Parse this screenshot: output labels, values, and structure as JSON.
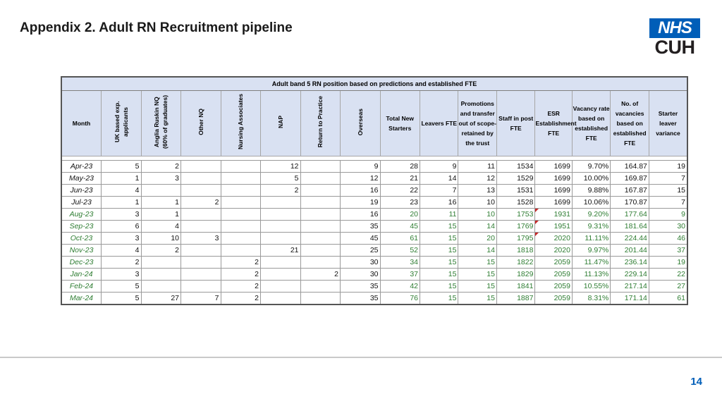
{
  "title": "Appendix 2. Adult RN Recruitment pipeline",
  "logo": {
    "nhs": "NHS",
    "org": "CUH"
  },
  "page_number": "14",
  "table": {
    "banner": "Adult band 5 RN position based on predictions and established FTE",
    "headers": [
      "Month",
      "UK based exp. applicants",
      "Anglia Ruskin NQ (60% of graduates)",
      "Other NQ",
      "Nursing Associates",
      "NAP",
      "Return to Practice",
      "Overseas",
      "Total New Starters",
      "Leavers FTE",
      "Promotions and transfer out of scope- retained by the trust",
      "Staff in post FTE",
      "ESR Establishment FTE",
      "Vacancy rate based on established FTE",
      "No. of vacancies based on established FTE",
      "Starter leaver variance"
    ],
    "rows": [
      [
        "Apr-23",
        "5",
        "2",
        "",
        "",
        "12",
        "",
        "9",
        "28",
        "9",
        "11",
        "1534",
        "1699",
        "9.70%",
        "164.87",
        "19"
      ],
      [
        "May-23",
        "1",
        "3",
        "",
        "",
        "5",
        "",
        "12",
        "21",
        "14",
        "12",
        "1529",
        "1699",
        "10.00%",
        "169.87",
        "7"
      ],
      [
        "Jun-23",
        "4",
        "",
        "",
        "",
        "2",
        "",
        "16",
        "22",
        "7",
        "13",
        "1531",
        "1699",
        "9.88%",
        "167.87",
        "15"
      ],
      [
        "Jul-23",
        "1",
        "1",
        "2",
        "",
        "",
        "",
        "19",
        "23",
        "16",
        "10",
        "1528",
        "1699",
        "10.06%",
        "170.87",
        "7"
      ],
      [
        "Aug-23",
        "3",
        "1",
        "",
        "",
        "",
        "",
        "16",
        "20",
        "11",
        "10",
        "1753",
        "1931",
        "9.20%",
        "177.64",
        "9"
      ],
      [
        "Sep-23",
        "6",
        "4",
        "",
        "",
        "",
        "",
        "35",
        "45",
        "15",
        "14",
        "1769",
        "1951",
        "9.31%",
        "181.64",
        "30"
      ],
      [
        "Oct-23",
        "3",
        "10",
        "3",
        "",
        "",
        "",
        "45",
        "61",
        "15",
        "20",
        "1795",
        "2020",
        "11.11%",
        "224.44",
        "46"
      ],
      [
        "Nov-23",
        "4",
        "2",
        "",
        "",
        "21",
        "",
        "25",
        "52",
        "15",
        "14",
        "1818",
        "2020",
        "9.97%",
        "201.44",
        "37"
      ],
      [
        "Dec-23",
        "2",
        "",
        "",
        "2",
        "",
        "",
        "30",
        "34",
        "15",
        "15",
        "1822",
        "2059",
        "11.47%",
        "236.14",
        "19"
      ],
      [
        "Jan-24",
        "3",
        "",
        "",
        "2",
        "",
        "2",
        "30",
        "37",
        "15",
        "15",
        "1829",
        "2059",
        "11.13%",
        "229.14",
        "22"
      ],
      [
        "Feb-24",
        "5",
        "",
        "",
        "2",
        "",
        "",
        "35",
        "42",
        "15",
        "15",
        "1841",
        "2059",
        "10.55%",
        "217.14",
        "27"
      ],
      [
        "Mar-24",
        "5",
        "27",
        "7",
        "2",
        "",
        "",
        "35",
        "76",
        "15",
        "15",
        "1887",
        "2059",
        "8.31%",
        "171.14",
        "61"
      ]
    ]
  },
  "colors": {
    "header_fill": "#d9e1f2",
    "forecast_text": "#2e7d32",
    "nhs_blue": "#005eb8",
    "comment_marker": "#c62828"
  }
}
